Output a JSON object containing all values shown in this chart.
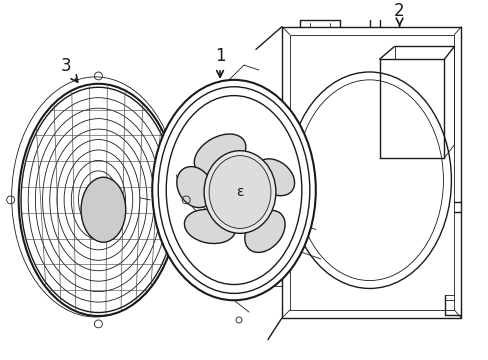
{
  "background_color": "#ffffff",
  "line_color": "#1a1a1a",
  "line_color_med": "#333333",
  "lw_thick": 1.5,
  "lw_med": 1.0,
  "lw_thin": 0.6,
  "label_1": "1",
  "label_2": "2",
  "label_3": "3",
  "figw": 4.89,
  "figh": 3.6,
  "dpi": 100
}
